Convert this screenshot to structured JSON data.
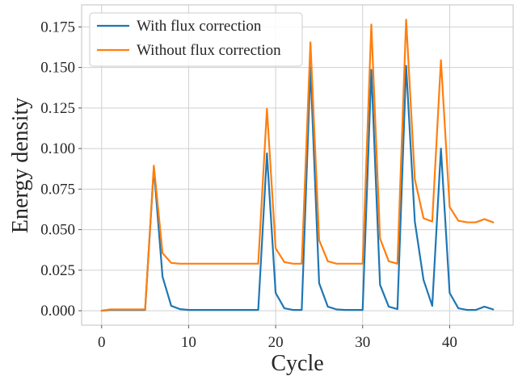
{
  "chart_data": {
    "type": "line",
    "xlabel": "Cycle",
    "ylabel": "Energy density",
    "xlim": [
      -2.3,
      47.3
    ],
    "ylim": [
      -0.0089,
      0.1886
    ],
    "x_ticks": [
      0,
      10,
      20,
      30,
      40
    ],
    "y_ticks": [
      0.0,
      0.025,
      0.05,
      0.075,
      0.1,
      0.125,
      0.15,
      0.175
    ],
    "x_tick_labels": [
      "0",
      "10",
      "20",
      "30",
      "40"
    ],
    "y_tick_labels": [
      "0.000",
      "0.025",
      "0.050",
      "0.075",
      "0.100",
      "0.125",
      "0.150",
      "0.175"
    ],
    "grid": true,
    "legend_position": "top-left",
    "x": [
      0,
      1,
      2,
      3,
      4,
      5,
      6,
      7,
      8,
      9,
      10,
      11,
      12,
      13,
      14,
      15,
      16,
      17,
      18,
      19,
      20,
      21,
      22,
      23,
      24,
      25,
      26,
      27,
      28,
      29,
      30,
      31,
      32,
      33,
      34,
      35,
      36,
      37,
      38,
      39,
      40,
      41,
      42,
      43,
      44,
      45
    ],
    "series": [
      {
        "name": "With flux correction",
        "color": "#1f77b4",
        "values": [
          0.0,
          0.0005,
          0.0005,
          0.0005,
          0.0005,
          0.0005,
          0.088,
          0.021,
          0.003,
          0.001,
          0.0005,
          0.0005,
          0.0005,
          0.0005,
          0.0005,
          0.0005,
          0.0005,
          0.0005,
          0.0005,
          0.097,
          0.011,
          0.0015,
          0.0005,
          0.0005,
          0.15,
          0.017,
          0.0025,
          0.0008,
          0.0005,
          0.0005,
          0.0005,
          0.1485,
          0.016,
          0.0025,
          0.001,
          0.151,
          0.055,
          0.019,
          0.003,
          0.1,
          0.011,
          0.0015,
          0.0005,
          0.0005,
          0.0025,
          0.0008
        ]
      },
      {
        "name": "Without flux correction",
        "color": "#ff7f0e",
        "values": [
          0.0,
          0.0008,
          0.0008,
          0.0008,
          0.0008,
          0.0008,
          0.0895,
          0.0355,
          0.0295,
          0.029,
          0.029,
          0.029,
          0.029,
          0.029,
          0.029,
          0.029,
          0.029,
          0.029,
          0.029,
          0.1245,
          0.0385,
          0.03,
          0.029,
          0.029,
          0.1655,
          0.0435,
          0.0305,
          0.029,
          0.029,
          0.029,
          0.029,
          0.1765,
          0.0445,
          0.0305,
          0.029,
          0.1795,
          0.081,
          0.057,
          0.055,
          0.1545,
          0.064,
          0.0555,
          0.0545,
          0.0545,
          0.0565,
          0.0545
        ]
      }
    ]
  }
}
